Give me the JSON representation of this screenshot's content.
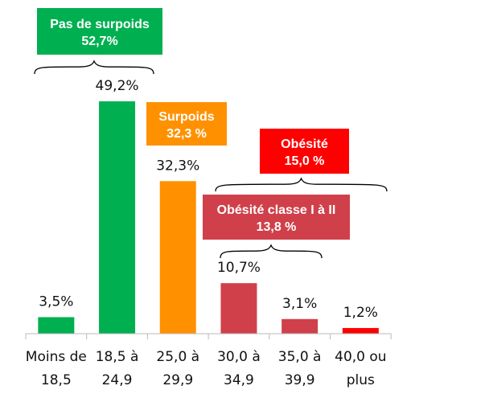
{
  "chart_data": {
    "type": "bar",
    "categories": [
      [
        "Moins de",
        "18,5"
      ],
      [
        "18,5 à",
        "24,9"
      ],
      [
        "25,0 à",
        "29,9"
      ],
      [
        "30,0 à",
        "34,9"
      ],
      [
        "35,0 à",
        "39,9"
      ],
      [
        "40,0 ou",
        "plus"
      ]
    ],
    "values": [
      3.5,
      49.2,
      32.3,
      10.7,
      3.1,
      1.2
    ],
    "value_labels": [
      "3,5%",
      "49,2%",
      "32,3%",
      "10,7%",
      "3,1%",
      "1,2%"
    ],
    "bar_colors": [
      "#00B050",
      "#00B050",
      "#FF9100",
      "#D0404A",
      "#D0404A",
      "#FF0000"
    ],
    "ylim": [
      0,
      55
    ],
    "grid": false,
    "groups": [
      {
        "id": "pas-de-surpoids",
        "title": "Pas de surpoids",
        "value": "52,7%",
        "color": "#00B050",
        "spans": [
          0,
          1
        ]
      },
      {
        "id": "surpoids",
        "title": "Surpoids",
        "value": "32,3 %",
        "color": "#FF9100",
        "spans": [
          2,
          2
        ]
      },
      {
        "id": "obesite",
        "title": "Obésité",
        "value": "15,0 %",
        "color": "#FF0000",
        "spans": [
          3,
          5
        ]
      },
      {
        "id": "obesite-classe",
        "title": "Obésité classe I à II",
        "value": "13,8 %",
        "color": "#D0404A",
        "spans": [
          3,
          4
        ]
      }
    ]
  }
}
